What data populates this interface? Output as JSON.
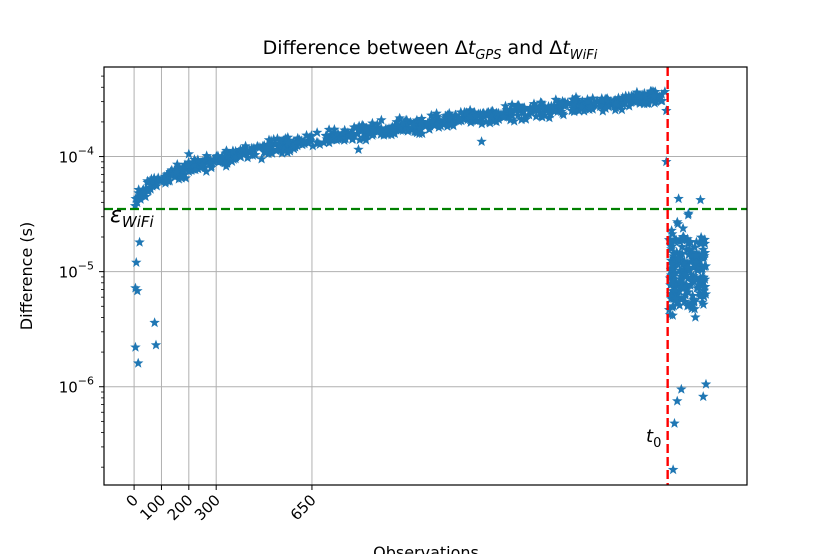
{
  "chart_data": {
    "type": "scatter",
    "title": "Difference between Δt_GPS and Δt_WiFi",
    "title_parts": {
      "prefix": "Difference between Δ",
      "t1": "t",
      "sub1": "GPS",
      "mid": " and Δ",
      "t2": "t",
      "sub2": "WiFi"
    },
    "xlabel": "Observations",
    "ylabel": "Difference (s)",
    "yscale": "log",
    "xlim": [
      -110,
      2240
    ],
    "ylim": [
      1.4e-07,
      0.0006
    ],
    "grid": true,
    "x_ticks": [
      {
        "value": 0,
        "label": "0"
      },
      {
        "value": 100,
        "label": "100"
      },
      {
        "value": 200,
        "label": "200"
      },
      {
        "value": 300,
        "label": "300"
      },
      {
        "value": 650,
        "label": "650"
      }
    ],
    "y_ticks": [
      {
        "value": 0.0001,
        "base": "10",
        "exp": "−4"
      },
      {
        "value": 1e-05,
        "base": "10",
        "exp": "−5"
      },
      {
        "value": 1e-06,
        "base": "10",
        "exp": "−6"
      }
    ],
    "marker": "star",
    "marker_color": "#1f77b4",
    "series": [
      {
        "segments": [
          {
            "x_start": 0,
            "x_end": 1950,
            "y_start": 3.5e-05,
            "y_end": 0.00033,
            "spread": 1.25,
            "count": 780
          },
          {
            "x_start": 1955,
            "x_end": 2090,
            "y_center": 1e-05,
            "spread": 2.8,
            "count": 200
          }
        ],
        "outliers": [
          [
            5,
            2.2e-06
          ],
          [
            15,
            1.6e-06
          ],
          [
            75,
            3.6e-06
          ],
          [
            80,
            2.3e-06
          ],
          [
            5,
            7.2e-06
          ],
          [
            12,
            6.8e-06
          ],
          [
            8,
            1.2e-05
          ],
          [
            20,
            1.8e-05
          ],
          [
            200,
            0.000105
          ],
          [
            1270,
            0.000135
          ],
          [
            820,
            0.000115
          ],
          [
            1945,
            0.00025
          ],
          [
            1945,
            9e-05
          ],
          [
            1970,
            1.9e-07
          ],
          [
            1975,
            4.8e-07
          ],
          [
            1985,
            7.5e-07
          ],
          [
            2000,
            9.5e-07
          ],
          [
            2080,
            8.2e-07
          ],
          [
            2090,
            1.05e-06
          ],
          [
            2070,
            4.2e-05
          ],
          [
            1990,
            4.3e-05
          ]
        ]
      }
    ],
    "hline": {
      "value": 3.5e-05,
      "color": "#008000",
      "style": "dashed",
      "label_base": "ε",
      "label_sub": "WiFi"
    },
    "vline": {
      "value": 1950,
      "color": "#ff0000",
      "style": "dashed",
      "label_base": "t",
      "label_sub": "0"
    }
  }
}
